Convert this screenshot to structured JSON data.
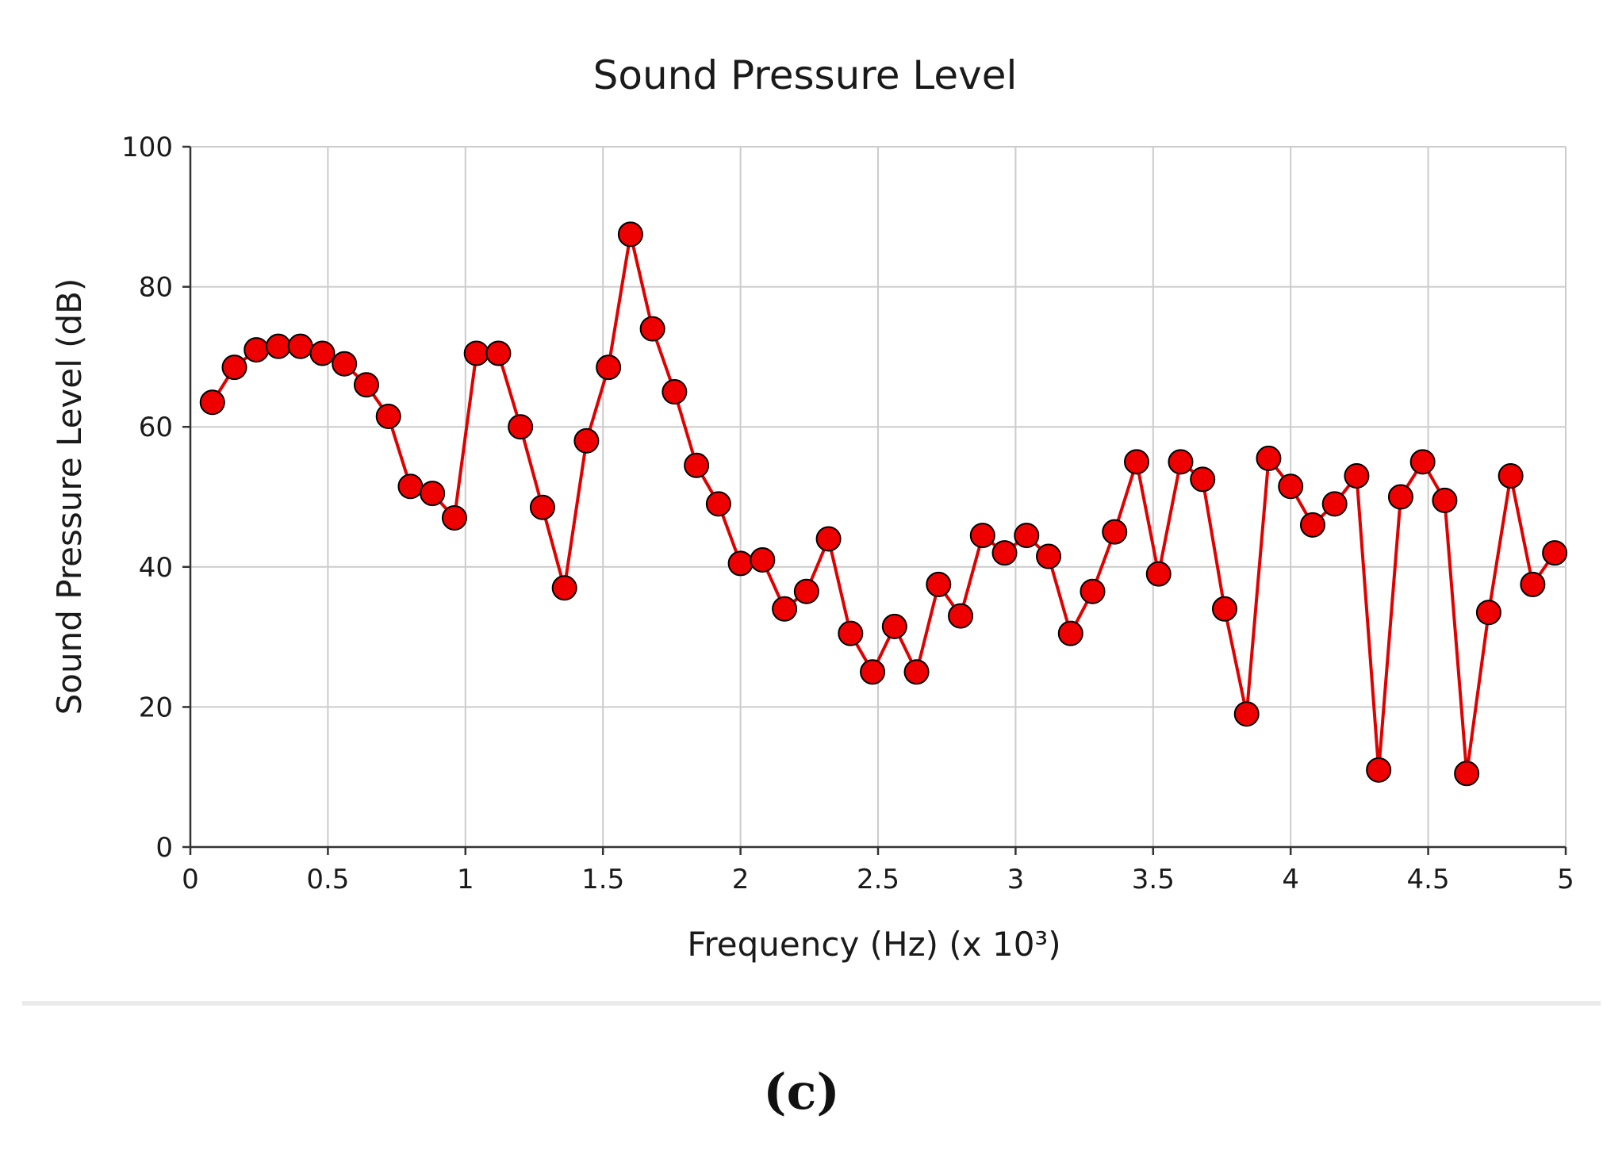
{
  "chart_data": {
    "type": "line",
    "title": "Sound Pressure Level",
    "xlabel": "Frequency (Hz) (x 10³)",
    "ylabel": "Sound Pressure Level (dB)",
    "xlim": [
      0,
      5
    ],
    "ylim": [
      0,
      100
    ],
    "xticks": [
      0,
      0.5,
      1,
      1.5,
      2,
      2.5,
      3,
      3.5,
      4,
      4.5,
      5
    ],
    "xtick_labels": [
      "0",
      "0.5",
      "1",
      "1.5",
      "2",
      "2.5",
      "3",
      "3.5",
      "4",
      "4.5",
      "5"
    ],
    "yticks": [
      0,
      20,
      40,
      60,
      80,
      100
    ],
    "ytick_labels": [
      "0",
      "20",
      "40",
      "60",
      "80",
      "100"
    ],
    "grid": true,
    "series": [
      {
        "name": "Sound Pressure Level",
        "color": "#e00000",
        "marker_color": "#ee0000",
        "x": [
          0.08,
          0.16,
          0.24,
          0.32,
          0.4,
          0.48,
          0.56,
          0.64,
          0.72,
          0.8,
          0.88,
          0.96,
          1.04,
          1.12,
          1.2,
          1.28,
          1.36,
          1.44,
          1.52,
          1.6,
          1.68,
          1.76,
          1.84,
          1.92,
          2.0,
          2.08,
          2.16,
          2.24,
          2.32,
          2.4,
          2.48,
          2.56,
          2.64,
          2.72,
          2.8,
          2.88,
          2.96,
          3.04,
          3.12,
          3.2,
          3.28,
          3.36,
          3.44,
          3.52,
          3.6,
          3.68,
          3.76,
          3.84,
          3.92,
          4.0,
          4.08,
          4.16,
          4.24,
          4.32,
          4.4,
          4.48,
          4.56,
          4.64,
          4.72,
          4.8,
          4.88,
          4.96
        ],
        "values": [
          63.5,
          68.5,
          71,
          71.5,
          71.5,
          70.5,
          69,
          66,
          61.5,
          51.5,
          50.5,
          47,
          70.5,
          70.5,
          60,
          48.5,
          37,
          58,
          68.5,
          87.5,
          74,
          65,
          54.5,
          49,
          40.5,
          41,
          34,
          36.5,
          44,
          30.5,
          25,
          31.5,
          25,
          37.5,
          33,
          44.5,
          42,
          44.5,
          41.5,
          30.5,
          36.5,
          45,
          55,
          39,
          55,
          52.5,
          34,
          19,
          55.5,
          51.5,
          46,
          49,
          53,
          11,
          50,
          55,
          49.5,
          10.5,
          33.5,
          53,
          37.5,
          42
        ]
      }
    ]
  },
  "caption": "(c)"
}
